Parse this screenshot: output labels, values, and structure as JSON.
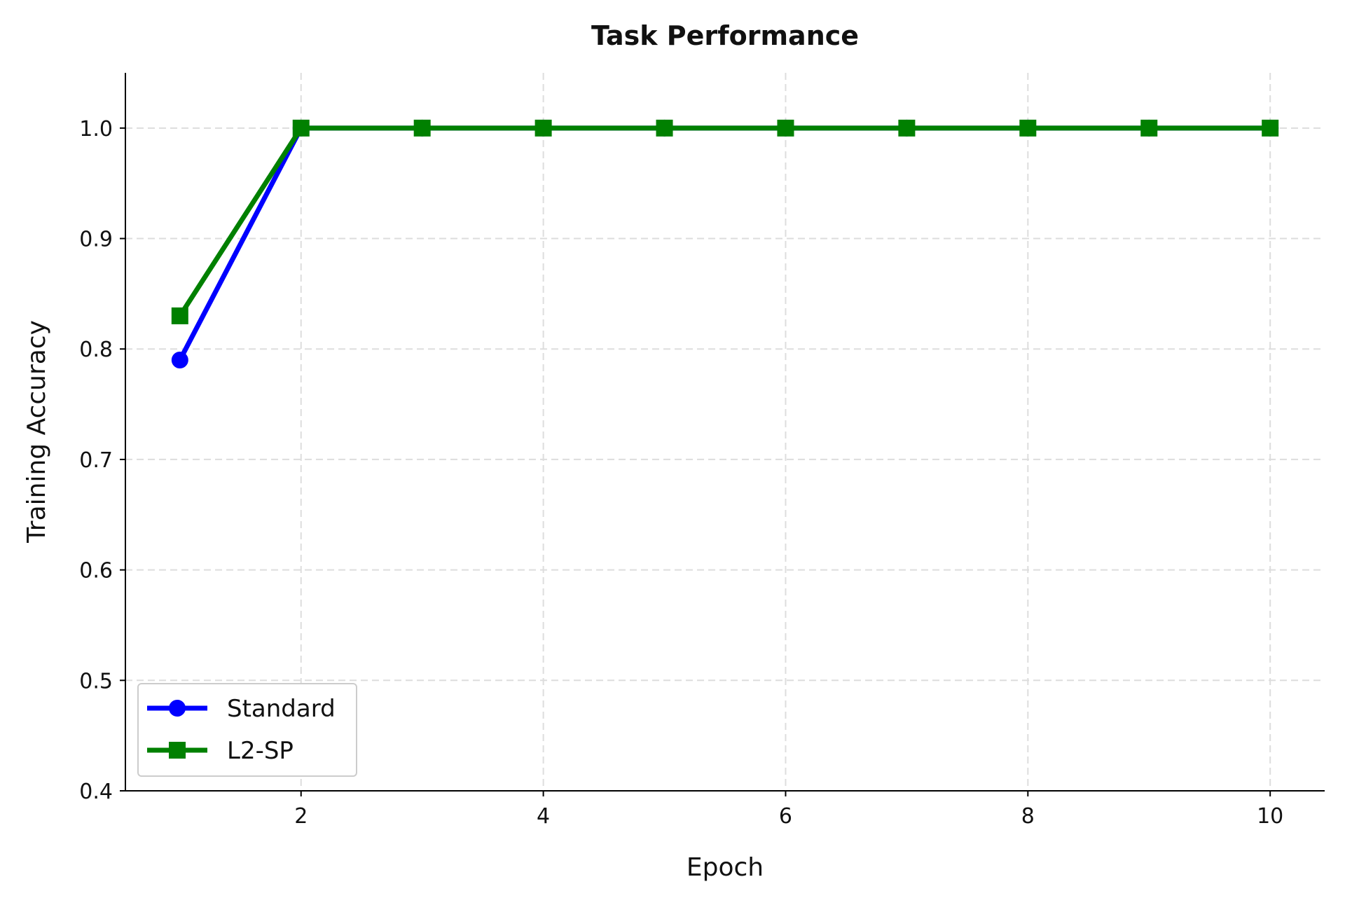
{
  "chart_data": {
    "type": "line",
    "title": "Task Performance",
    "xlabel": "Epoch",
    "ylabel": "Training Accuracy",
    "xlim": [
      0.55,
      10.45
    ],
    "ylim": [
      0.4,
      1.05
    ],
    "xticks": [
      2,
      4,
      6,
      8,
      10
    ],
    "yticks": [
      0.4,
      0.5,
      0.6,
      0.7,
      0.8,
      0.9,
      1.0
    ],
    "ytick_labels": [
      "0.4",
      "0.5",
      "0.6",
      "0.7",
      "0.8",
      "0.9",
      "1.0"
    ],
    "grid": true,
    "legend_placement": "lower-left",
    "x": [
      1,
      2,
      3,
      4,
      5,
      6,
      7,
      8,
      9,
      10
    ],
    "series": [
      {
        "name": "Standard",
        "color": "#0000ff",
        "marker": "circle",
        "values": [
          0.79,
          1.0,
          1.0,
          1.0,
          1.0,
          1.0,
          1.0,
          1.0,
          1.0,
          1.0
        ]
      },
      {
        "name": "L2-SP",
        "color": "#008000",
        "marker": "square",
        "values": [
          0.83,
          1.0,
          1.0,
          1.0,
          1.0,
          1.0,
          1.0,
          1.0,
          1.0,
          1.0
        ]
      }
    ]
  }
}
